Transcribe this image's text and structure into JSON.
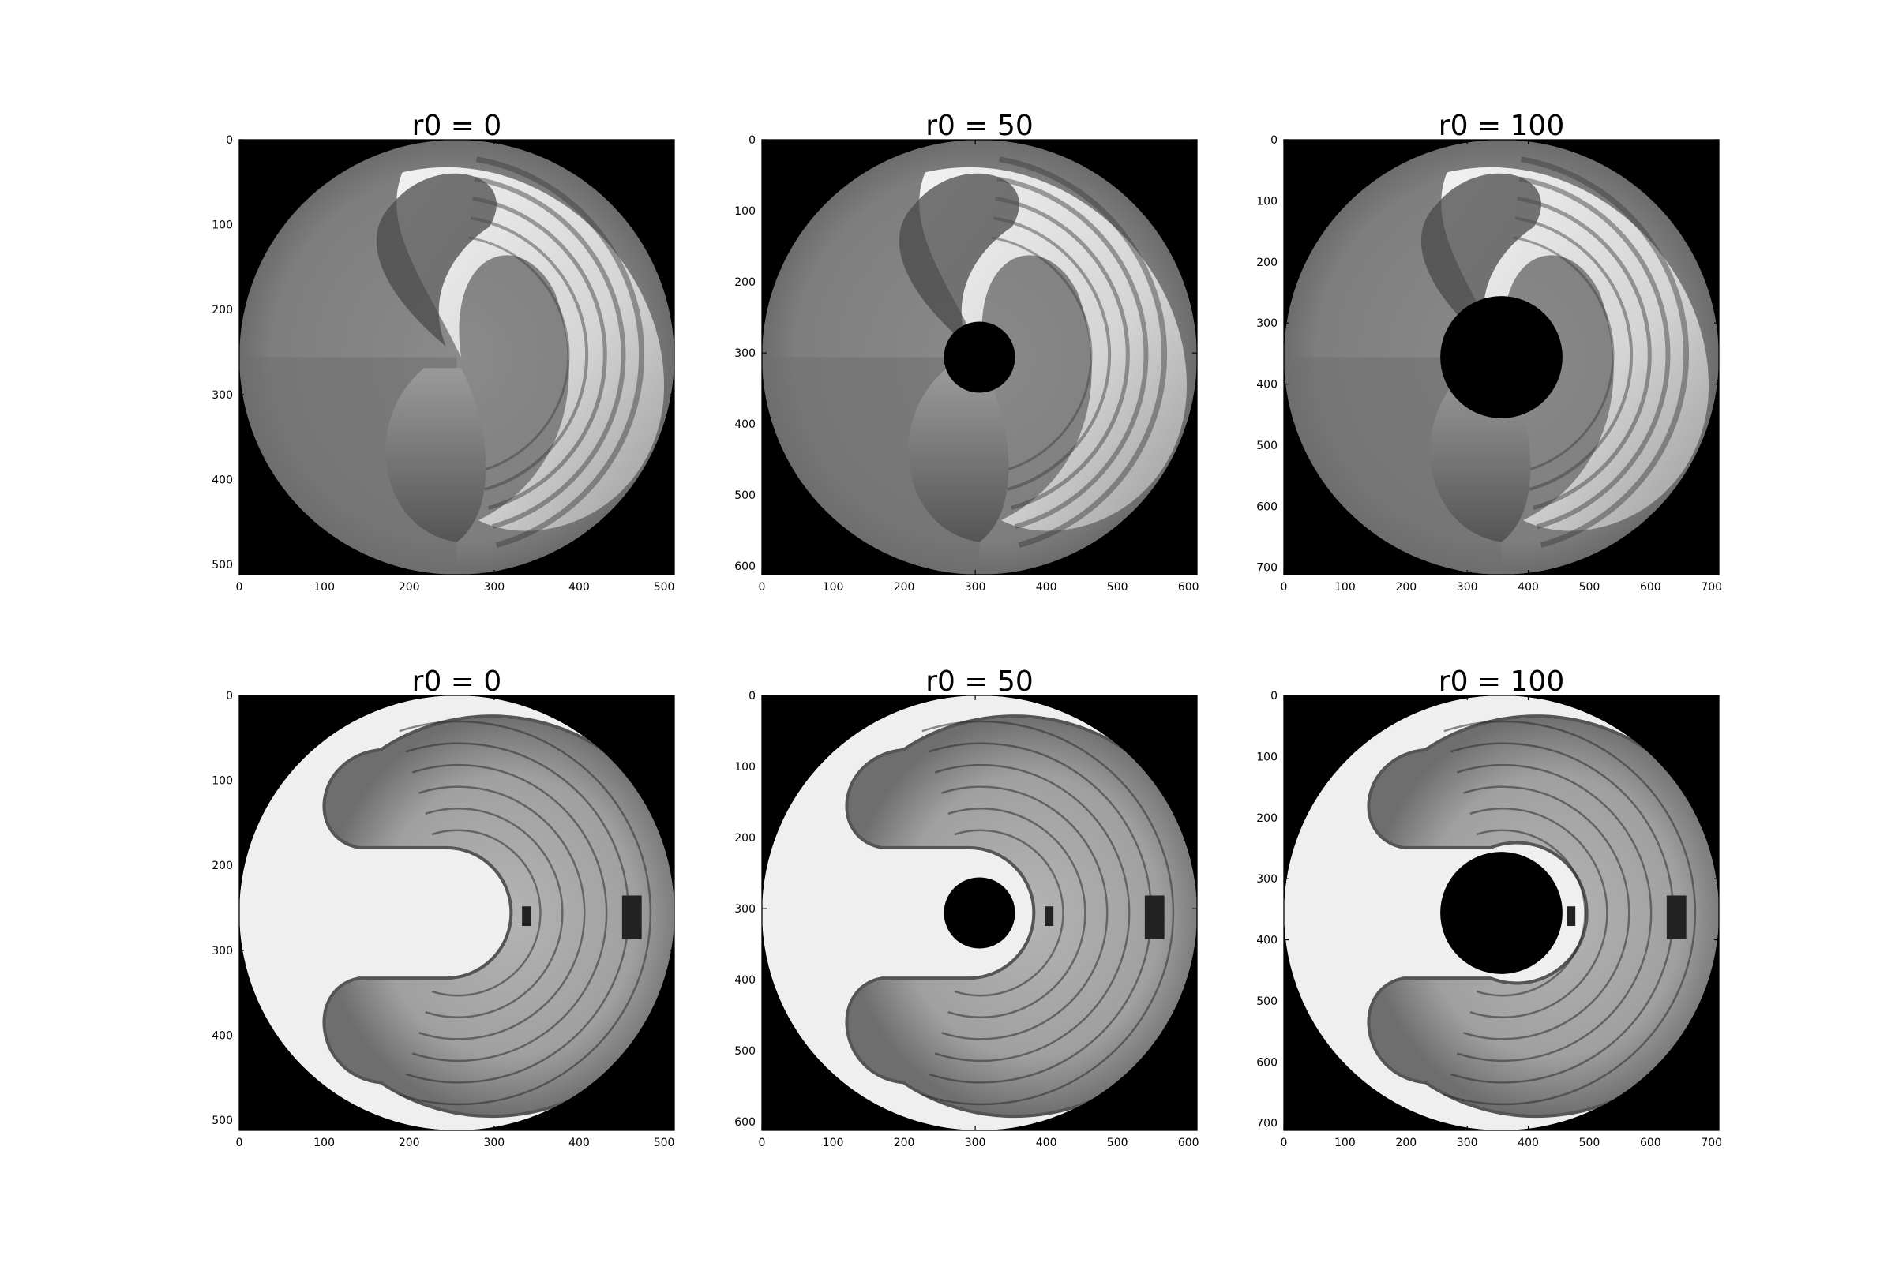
{
  "figure": {
    "background": "#ffffff",
    "image_background": "#000000",
    "colormap": "gray"
  },
  "chart_data": [
    {
      "type": "heatmap",
      "row": 1,
      "image": "photo-swirl",
      "title": "r0 = 0",
      "r0": 0,
      "size": 512,
      "xlim": [
        0,
        512
      ],
      "ylim": [
        512,
        0
      ],
      "xticks": [
        0,
        100,
        200,
        300,
        400,
        500
      ],
      "yticks": [
        0,
        100,
        200,
        300,
        400,
        500
      ],
      "background_tone": "#000000"
    },
    {
      "type": "heatmap",
      "row": 1,
      "image": "photo-swirl",
      "title": "r0 = 50",
      "r0": 50,
      "size": 612,
      "xlim": [
        0,
        612
      ],
      "ylim": [
        612,
        0
      ],
      "xticks": [
        0,
        100,
        200,
        300,
        400,
        500,
        600
      ],
      "yticks": [
        0,
        100,
        200,
        300,
        400,
        500,
        600
      ],
      "background_tone": "#000000"
    },
    {
      "type": "heatmap",
      "row": 1,
      "image": "photo-swirl",
      "title": "r0 = 100",
      "r0": 100,
      "size": 712,
      "xlim": [
        0,
        712
      ],
      "ylim": [
        712,
        0
      ],
      "xticks": [
        0,
        100,
        200,
        300,
        400,
        500,
        600,
        700
      ],
      "yticks": [
        0,
        100,
        200,
        300,
        400,
        500,
        600,
        700
      ],
      "background_tone": "#000000"
    },
    {
      "type": "heatmap",
      "row": 2,
      "image": "clock-swirl",
      "title": "r0 = 0",
      "r0": 0,
      "size": 512,
      "xlim": [
        0,
        512
      ],
      "ylim": [
        512,
        0
      ],
      "xticks": [
        0,
        100,
        200,
        300,
        400,
        500
      ],
      "yticks": [
        0,
        100,
        200,
        300,
        400,
        500
      ],
      "background_tone": "#000000"
    },
    {
      "type": "heatmap",
      "row": 2,
      "image": "clock-swirl",
      "title": "r0 = 50",
      "r0": 50,
      "size": 612,
      "xlim": [
        0,
        612
      ],
      "ylim": [
        612,
        0
      ],
      "xticks": [
        0,
        100,
        200,
        300,
        400,
        500,
        600
      ],
      "yticks": [
        0,
        100,
        200,
        300,
        400,
        500,
        600
      ],
      "background_tone": "#000000"
    },
    {
      "type": "heatmap",
      "row": 2,
      "image": "clock-swirl",
      "title": "r0 = 100",
      "r0": 100,
      "size": 712,
      "xlim": [
        0,
        712
      ],
      "ylim": [
        712,
        0
      ],
      "xticks": [
        0,
        100,
        200,
        300,
        400,
        500,
        600,
        700
      ],
      "yticks": [
        0,
        100,
        200,
        300,
        400,
        500,
        600,
        700
      ],
      "background_tone": "#000000"
    }
  ]
}
